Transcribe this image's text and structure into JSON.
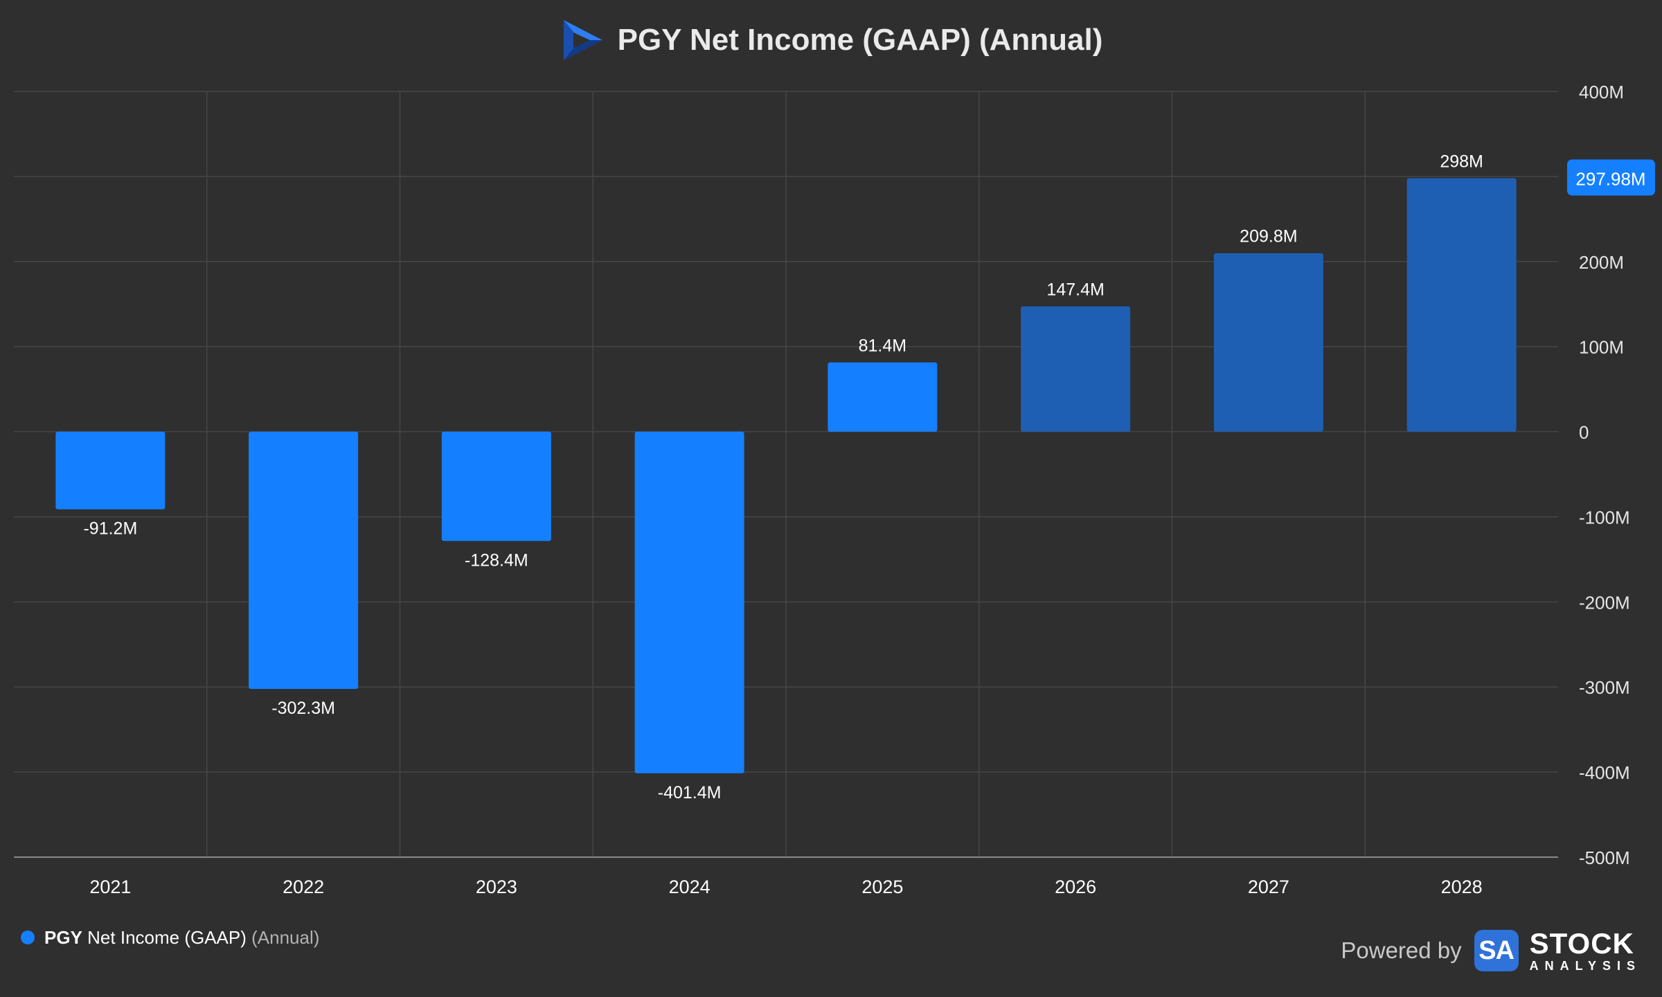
{
  "header": {
    "title": "PGY Net Income (GAAP) (Annual)",
    "logo_icon": "seeking-alpha-play-logo-icon"
  },
  "colors": {
    "background": "#2f2f2f",
    "bar_actual": "#1580ff",
    "bar_estimate": "#1f5fb3",
    "grid": "#464646",
    "tooltip_badge": "#1580ff"
  },
  "chart_data": {
    "type": "bar",
    "title": "PGY Net Income (GAAP) (Annual)",
    "categories": [
      "2021",
      "2022",
      "2023",
      "2024",
      "2025",
      "2026",
      "2027",
      "2028"
    ],
    "series": [
      {
        "name": "PGY Net Income (GAAP)",
        "values": [
          -91.2,
          -302.3,
          -128.4,
          -401.4,
          81.4,
          147.4,
          209.8,
          298
        ],
        "data_labels": [
          "-91.2M",
          "-302.3M",
          "-128.4M",
          "-401.4M",
          "81.4M",
          "147.4M",
          "209.8M",
          "298M"
        ],
        "estimate": [
          false,
          false,
          false,
          false,
          false,
          true,
          true,
          true
        ]
      }
    ],
    "ylim": [
      -500,
      400
    ],
    "y_ticks": [
      400,
      300,
      200,
      100,
      0,
      -100,
      -200,
      -300,
      -400,
      -500
    ],
    "y_tick_labels": [
      "400M",
      "",
      "200M",
      "100M",
      "0",
      "-100M",
      "-200M",
      "-300M",
      "-400M",
      "-500M"
    ],
    "y_axis_side": "right",
    "grid": true,
    "last_value_badge": {
      "value": 297.98,
      "label": "297.98M"
    },
    "legend": {
      "ticker": "PGY",
      "name": "Net Income (GAAP)",
      "period": "(Annual)",
      "position": "bottom-left"
    }
  },
  "footer": {
    "powered_by": "Powered by",
    "badge": "SA",
    "brand_line1": "STOCK",
    "brand_line2": "ANALYSIS"
  }
}
